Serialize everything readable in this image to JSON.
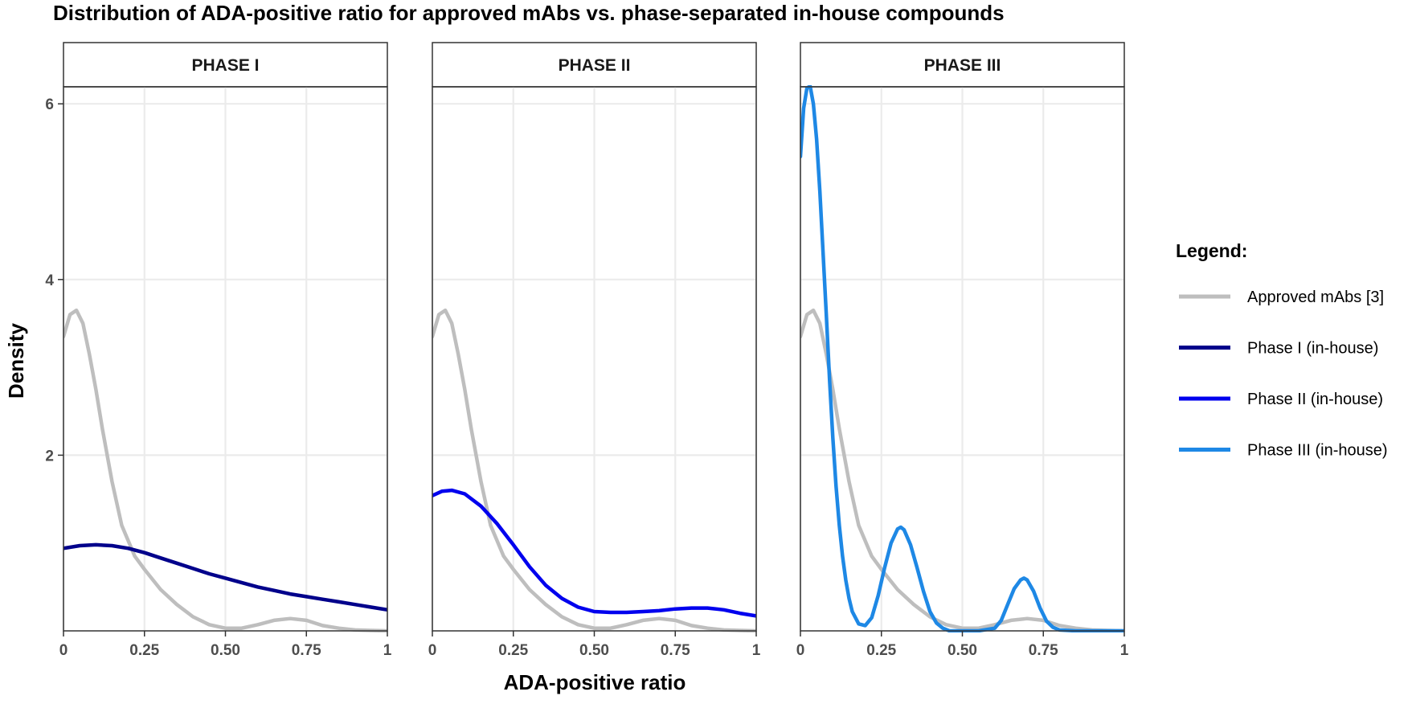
{
  "chart_data": {
    "type": "line",
    "title": "Distribution of ADA-positive ratio for approved mAbs vs. phase-separated in-house compounds",
    "xlabel": "ADA-positive ratio",
    "ylabel": "Density",
    "xlim": [
      0,
      1
    ],
    "ylim": [
      0,
      6.2
    ],
    "x_ticks": [
      0,
      0.25,
      0.5,
      0.75,
      1
    ],
    "x_tick_labels": [
      "0",
      "0.25",
      "0.50",
      "0.75",
      "1"
    ],
    "y_ticks": [
      2,
      4,
      6
    ],
    "y_tick_labels": [
      "2",
      "4",
      "6"
    ],
    "grid": true,
    "legend": {
      "title": "Legend:",
      "position": "right",
      "items": [
        {
          "label": "Approved mAbs [3]",
          "color": "#bebebe"
        },
        {
          "label": "Phase I (in-house)",
          "color": "#00008b"
        },
        {
          "label": "Phase II (in-house)",
          "color": "#0000ee"
        },
        {
          "label": "Phase III (in-house)",
          "color": "#1e88e5"
        }
      ]
    },
    "panels": [
      {
        "strip": "PHASE I",
        "series": [
          {
            "name": "Approved mAbs [3]",
            "color": "#bebebe",
            "x": [
              0,
              0.02,
              0.04,
              0.06,
              0.08,
              0.1,
              0.12,
              0.15,
              0.18,
              0.22,
              0.25,
              0.3,
              0.35,
              0.4,
              0.45,
              0.5,
              0.55,
              0.6,
              0.65,
              0.7,
              0.75,
              0.8,
              0.85,
              0.9,
              0.95,
              1.0
            ],
            "y": [
              3.35,
              3.6,
              3.65,
              3.5,
              3.15,
              2.75,
              2.3,
              1.7,
              1.2,
              0.85,
              0.7,
              0.47,
              0.3,
              0.16,
              0.07,
              0.03,
              0.03,
              0.07,
              0.12,
              0.14,
              0.12,
              0.06,
              0.03,
              0.01,
              0.005,
              0.0
            ]
          },
          {
            "name": "Phase I (in-house)",
            "color": "#00008b",
            "x": [
              0,
              0.05,
              0.1,
              0.15,
              0.2,
              0.25,
              0.3,
              0.35,
              0.4,
              0.45,
              0.5,
              0.55,
              0.6,
              0.65,
              0.7,
              0.75,
              0.8,
              0.85,
              0.9,
              0.95,
              1.0
            ],
            "y": [
              0.94,
              0.97,
              0.98,
              0.97,
              0.94,
              0.89,
              0.83,
              0.77,
              0.71,
              0.65,
              0.6,
              0.55,
              0.5,
              0.46,
              0.42,
              0.39,
              0.36,
              0.33,
              0.3,
              0.27,
              0.24
            ]
          }
        ]
      },
      {
        "strip": "PHASE II",
        "series": [
          {
            "name": "Approved mAbs [3]",
            "color": "#bebebe",
            "x": [
              0,
              0.02,
              0.04,
              0.06,
              0.08,
              0.1,
              0.12,
              0.15,
              0.18,
              0.22,
              0.25,
              0.3,
              0.35,
              0.4,
              0.45,
              0.5,
              0.55,
              0.6,
              0.65,
              0.7,
              0.75,
              0.8,
              0.85,
              0.9,
              0.95,
              1.0
            ],
            "y": [
              3.35,
              3.6,
              3.65,
              3.5,
              3.15,
              2.75,
              2.3,
              1.7,
              1.2,
              0.85,
              0.7,
              0.47,
              0.3,
              0.16,
              0.07,
              0.03,
              0.03,
              0.07,
              0.12,
              0.14,
              0.12,
              0.06,
              0.03,
              0.01,
              0.005,
              0.0
            ]
          },
          {
            "name": "Phase II (in-house)",
            "color": "#0000ee",
            "x": [
              0,
              0.03,
              0.06,
              0.1,
              0.15,
              0.2,
              0.25,
              0.3,
              0.35,
              0.4,
              0.45,
              0.5,
              0.55,
              0.6,
              0.65,
              0.7,
              0.75,
              0.8,
              0.85,
              0.9,
              0.95,
              1.0
            ],
            "y": [
              1.54,
              1.59,
              1.6,
              1.56,
              1.42,
              1.22,
              0.98,
              0.73,
              0.52,
              0.37,
              0.27,
              0.22,
              0.21,
              0.21,
              0.22,
              0.23,
              0.25,
              0.26,
              0.26,
              0.24,
              0.2,
              0.17
            ]
          }
        ]
      },
      {
        "strip": "PHASE III",
        "series": [
          {
            "name": "Approved mAbs [3]",
            "color": "#bebebe",
            "x": [
              0,
              0.02,
              0.04,
              0.06,
              0.08,
              0.1,
              0.12,
              0.15,
              0.18,
              0.22,
              0.25,
              0.3,
              0.35,
              0.4,
              0.45,
              0.5,
              0.55,
              0.6,
              0.65,
              0.7,
              0.75,
              0.8,
              0.85,
              0.9,
              0.95,
              1.0
            ],
            "y": [
              3.35,
              3.6,
              3.65,
              3.5,
              3.15,
              2.75,
              2.3,
              1.7,
              1.2,
              0.85,
              0.7,
              0.47,
              0.3,
              0.16,
              0.07,
              0.03,
              0.03,
              0.07,
              0.12,
              0.14,
              0.12,
              0.06,
              0.03,
              0.01,
              0.005,
              0.0
            ]
          },
          {
            "name": "Phase III (in-house)",
            "color": "#1e88e5",
            "x": [
              0,
              0.01,
              0.02,
              0.03,
              0.04,
              0.05,
              0.06,
              0.07,
              0.08,
              0.09,
              0.1,
              0.11,
              0.12,
              0.13,
              0.14,
              0.15,
              0.16,
              0.18,
              0.2,
              0.22,
              0.24,
              0.26,
              0.28,
              0.3,
              0.31,
              0.32,
              0.34,
              0.36,
              0.38,
              0.4,
              0.42,
              0.44,
              0.46,
              0.5,
              0.55,
              0.6,
              0.62,
              0.64,
              0.66,
              0.68,
              0.69,
              0.7,
              0.72,
              0.74,
              0.76,
              0.78,
              0.8,
              0.85,
              0.9,
              1.0
            ],
            "y": [
              5.4,
              5.95,
              6.18,
              6.2,
              6.0,
              5.6,
              5.0,
              4.3,
              3.6,
              2.85,
              2.2,
              1.65,
              1.2,
              0.85,
              0.58,
              0.37,
              0.22,
              0.08,
              0.06,
              0.15,
              0.4,
              0.72,
              1.0,
              1.16,
              1.18,
              1.15,
              0.98,
              0.72,
              0.45,
              0.22,
              0.09,
              0.03,
              0.0,
              0.0,
              0.0,
              0.03,
              0.12,
              0.3,
              0.48,
              0.58,
              0.6,
              0.58,
              0.45,
              0.26,
              0.11,
              0.04,
              0.01,
              0.0,
              0.0,
              0.0
            ]
          }
        ]
      }
    ]
  }
}
